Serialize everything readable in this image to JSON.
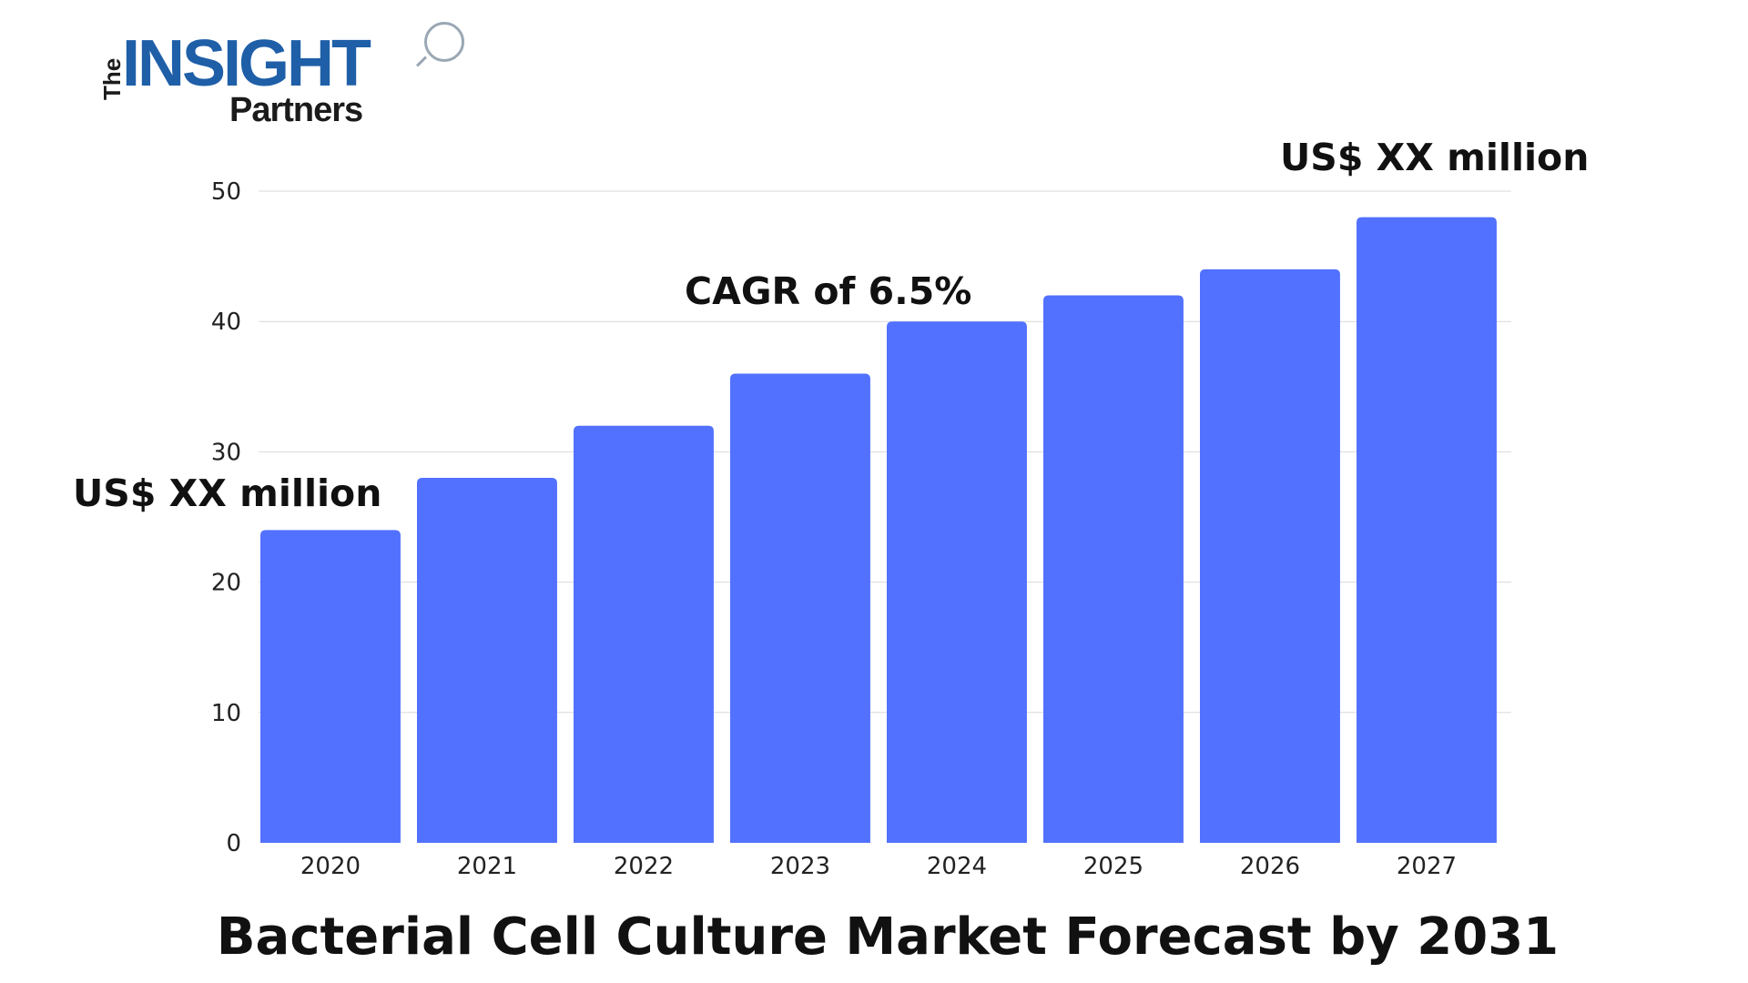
{
  "logo": {
    "the": "The",
    "insight": "INSIGHT",
    "partners": "Partners"
  },
  "colors": {
    "bar": "#5271ff",
    "grid": "#d9d9d9",
    "text": "#111111",
    "logo_blue": "#1f5fa8"
  },
  "annotations": {
    "start": "US$ XX million",
    "cagr": "CAGR of 6.5%",
    "end": "US$ XX million"
  },
  "chart_data": {
    "type": "bar",
    "title": "Bacterial Cell Culture Market Forecast by 2031",
    "xlabel": "",
    "ylabel": "",
    "categories": [
      "2020",
      "2021",
      "2022",
      "2023",
      "2024",
      "2025",
      "2026",
      "2027"
    ],
    "values": [
      24,
      28,
      32,
      36,
      40,
      42,
      44,
      48
    ],
    "ylim": [
      0,
      50
    ],
    "yticks": [
      0,
      10,
      20,
      30,
      40,
      50
    ],
    "grid": true,
    "legend": "none"
  }
}
